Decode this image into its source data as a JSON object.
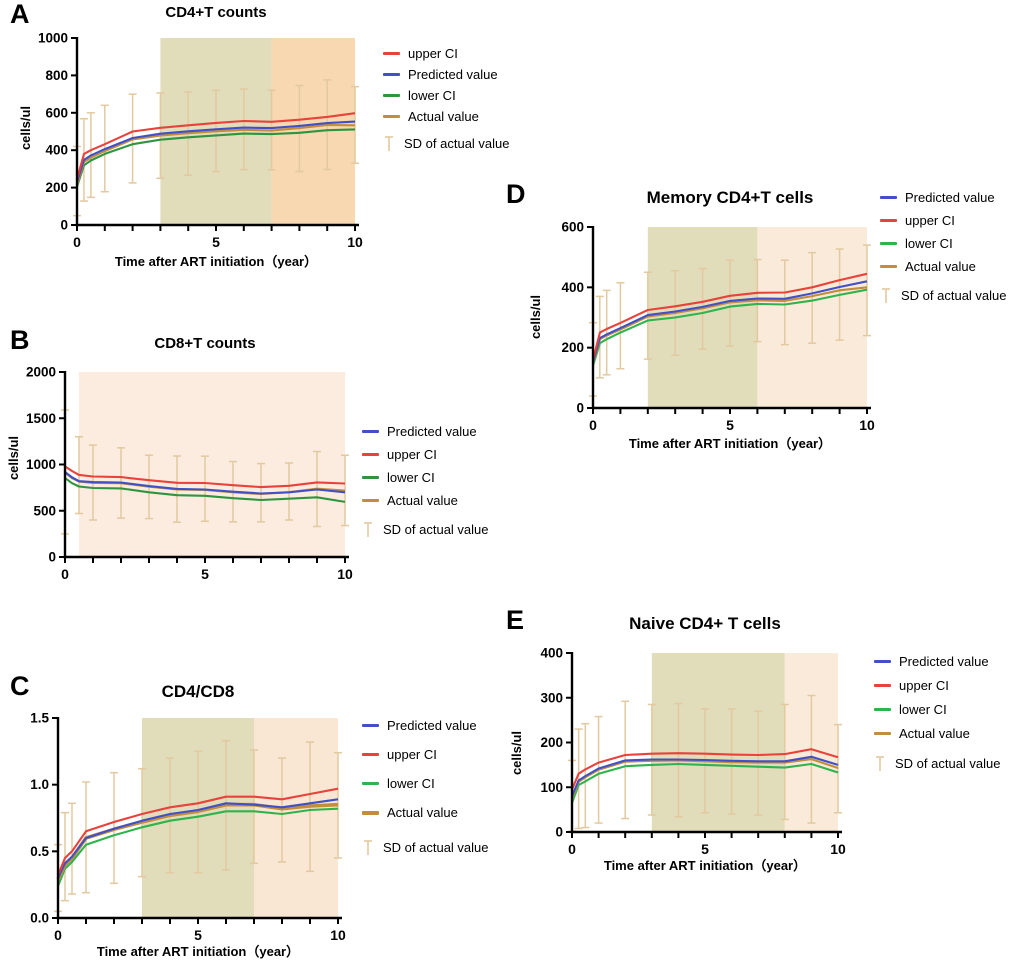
{
  "colors": {
    "red": "#e8423a",
    "blue": "#4150c8",
    "green_dark": "#2e9440",
    "green": "#2eb44c",
    "tan": "#c28e3e",
    "sd": "#e2c9a0",
    "olive": "#e1dcba",
    "peach_strong": "#f7d8b0",
    "peach_light": "#fcecdf",
    "peach": "#f9e6d3",
    "peach_soft": "#faead9"
  },
  "chart_data": [
    {
      "panel_label": "A",
      "type": "line",
      "title": "CD4+T counts",
      "xlabel": "Time after ART initiation（year）",
      "ylabel": "cells/ul",
      "xlim": [
        0,
        10
      ],
      "ylim": [
        0,
        1000
      ],
      "yticks": [
        0,
        200,
        400,
        600,
        800,
        1000
      ],
      "ytick_labels": [
        "0",
        "200",
        "400",
        "600",
        "800",
        "1000"
      ],
      "xticks_minor": [
        0,
        1,
        2,
        3,
        4,
        5,
        6,
        7,
        8,
        9,
        10
      ],
      "xticks_labeled": [
        0,
        5,
        10
      ],
      "regions": [
        {
          "from": 3,
          "to": 7,
          "color": "olive"
        },
        {
          "from": 7,
          "to": 10,
          "color": "peach_strong"
        }
      ],
      "x": [
        0,
        0.25,
        0.5,
        1,
        2,
        3,
        4,
        5,
        6,
        7,
        8,
        9,
        10
      ],
      "series": [
        {
          "name": "upper CI",
          "color": "red",
          "values": [
            245,
            380,
            400,
            432,
            500,
            520,
            533,
            546,
            556,
            552,
            563,
            578,
            598
          ]
        },
        {
          "name": "Predicted value",
          "color": "blue",
          "values": [
            230,
            348,
            372,
            406,
            465,
            488,
            501,
            512,
            521,
            518,
            530,
            545,
            553
          ]
        },
        {
          "name": "lower CI",
          "color": "green_dark",
          "values": [
            205,
            320,
            345,
            380,
            432,
            456,
            469,
            479,
            489,
            486,
            493,
            507,
            511
          ]
        },
        {
          "name": "Actual value",
          "color": "tan",
          "values": [
            215,
            338,
            360,
            395,
            458,
            478,
            491,
            501,
            509,
            505,
            518,
            535,
            533
          ]
        }
      ],
      "sd": {
        "label": "SD of  actual value",
        "x": [
          0,
          0.25,
          0.5,
          1,
          2,
          3,
          4,
          5,
          6,
          7,
          8,
          9,
          10
        ],
        "low": [
          50,
          128,
          148,
          178,
          225,
          250,
          266,
          286,
          296,
          295,
          286,
          297,
          330
        ],
        "high": [
          420,
          568,
          600,
          640,
          700,
          706,
          712,
          721,
          727,
          721,
          746,
          776,
          740
        ]
      }
    },
    {
      "panel_label": "B",
      "type": "line",
      "title": "CD8+T counts",
      "ylabel": "cells/ul",
      "xlim": [
        0,
        10
      ],
      "ylim": [
        0,
        2000
      ],
      "yticks": [
        0,
        500,
        1000,
        1500,
        2000
      ],
      "ytick_labels": [
        "0",
        "500",
        "1000",
        "1500",
        "2000"
      ],
      "xticks_minor": [
        0,
        1,
        2,
        3,
        4,
        5,
        6,
        7,
        8,
        9,
        10
      ],
      "xticks_labeled": [
        0,
        5,
        10
      ],
      "regions": [
        {
          "from": 0.5,
          "to": 10,
          "color": "peach_light"
        }
      ],
      "x": [
        0,
        0.25,
        0.5,
        1,
        2,
        3,
        4,
        5,
        6,
        7,
        8,
        9,
        10
      ],
      "series": [
        {
          "name": "Predicted value",
          "color": "blue",
          "values": [
            920,
            862,
            820,
            810,
            804,
            766,
            736,
            730,
            706,
            686,
            700,
            730,
            700
          ]
        },
        {
          "name": "upper CI",
          "color": "red",
          "values": [
            980,
            930,
            888,
            870,
            864,
            830,
            802,
            800,
            776,
            756,
            770,
            806,
            795
          ]
        },
        {
          "name": "lower CI",
          "color": "green_dark",
          "values": [
            855,
            798,
            762,
            746,
            742,
            700,
            668,
            662,
            636,
            616,
            630,
            645,
            596
          ]
        },
        {
          "name": "Actual value",
          "color": "tan",
          "values": [
            910,
            852,
            815,
            800,
            798,
            760,
            730,
            724,
            700,
            681,
            701,
            738,
            718
          ]
        }
      ],
      "sd": {
        "label": "SD of  actual value",
        "x": [
          0,
          0.5,
          1,
          2,
          3,
          4,
          5,
          6,
          7,
          8,
          9,
          10
        ],
        "low": [
          250,
          470,
          400,
          420,
          415,
          376,
          386,
          380,
          380,
          400,
          330,
          340
        ],
        "high": [
          1590,
          1300,
          1210,
          1180,
          1100,
          1092,
          1090,
          1032,
          1010,
          1016,
          1140,
          1100
        ]
      }
    },
    {
      "panel_label": "C",
      "type": "line",
      "title": "CD4/CD8",
      "xlabel": "Time after ART initiation（year）",
      "xlim": [
        0,
        10
      ],
      "ylim": [
        0,
        1.5
      ],
      "yticks": [
        0,
        0.5,
        1.0,
        1.5
      ],
      "ytick_labels": [
        "0.0",
        "0.5",
        "1.0",
        "1.5"
      ],
      "xticks_minor": [
        0,
        1,
        2,
        3,
        4,
        5,
        6,
        7,
        8,
        9,
        10
      ],
      "xticks_labeled": [
        0,
        5,
        10
      ],
      "regions": [
        {
          "from": 3,
          "to": 7,
          "color": "olive"
        },
        {
          "from": 7,
          "to": 10,
          "color": "peach"
        }
      ],
      "x": [
        0,
        0.25,
        0.5,
        1,
        2,
        3,
        4,
        5,
        6,
        7,
        8,
        9,
        10
      ],
      "series": [
        {
          "name": "Predicted value",
          "color": "blue",
          "values": [
            0.3,
            0.41,
            0.46,
            0.6,
            0.67,
            0.73,
            0.78,
            0.81,
            0.86,
            0.85,
            0.83,
            0.86,
            0.89
          ]
        },
        {
          "name": "upper CI",
          "color": "red",
          "values": [
            0.32,
            0.45,
            0.5,
            0.65,
            0.72,
            0.78,
            0.83,
            0.86,
            0.91,
            0.91,
            0.89,
            0.93,
            0.97
          ]
        },
        {
          "name": "lower CI",
          "color": "green",
          "values": [
            0.24,
            0.37,
            0.42,
            0.55,
            0.62,
            0.68,
            0.73,
            0.76,
            0.8,
            0.8,
            0.78,
            0.81,
            0.82
          ]
        },
        {
          "name": "Actual value",
          "color": "tan",
          "thick": true,
          "values": [
            0.29,
            0.4,
            0.45,
            0.6,
            0.665,
            0.72,
            0.77,
            0.8,
            0.85,
            0.85,
            0.82,
            0.84,
            0.85
          ]
        }
      ],
      "sd": {
        "label": "SD of  actual value",
        "x": [
          0,
          0.25,
          0.5,
          1,
          2,
          3,
          4,
          5,
          6,
          7,
          8,
          9,
          10
        ],
        "low": [
          0.05,
          0.13,
          0.18,
          0.19,
          0.26,
          0.31,
          0.34,
          0.34,
          0.36,
          0.41,
          0.42,
          0.35,
          0.45
        ],
        "high": [
          0.55,
          0.79,
          0.86,
          1.02,
          1.09,
          1.12,
          1.2,
          1.25,
          1.33,
          1.26,
          1.2,
          1.32,
          1.24
        ]
      }
    },
    {
      "panel_label": "D",
      "type": "line",
      "title": "Memory CD4+T cells",
      "xlabel": "Time after ART initiation（year）",
      "ylabel": "cells/ul",
      "xlim": [
        0,
        10
      ],
      "ylim": [
        0,
        600
      ],
      "yticks": [
        0,
        200,
        400,
        600
      ],
      "ytick_labels": [
        "0",
        "200",
        "400",
        "600"
      ],
      "xticks_minor": [
        0,
        1,
        2,
        3,
        4,
        5,
        6,
        7,
        8,
        9,
        10
      ],
      "xticks_labeled": [
        0,
        5,
        10
      ],
      "regions": [
        {
          "from": 2,
          "to": 6,
          "color": "olive"
        },
        {
          "from": 6,
          "to": 10,
          "color": "peach_soft"
        }
      ],
      "x": [
        0,
        0.25,
        0.5,
        1,
        2,
        3,
        4,
        5,
        6,
        7,
        8,
        9,
        10
      ],
      "series": [
        {
          "name": "Predicted value",
          "color": "blue",
          "values": [
            152,
            232,
            244,
            265,
            308,
            320,
            335,
            355,
            363,
            362,
            380,
            401,
            420
          ]
        },
        {
          "name": "upper CI",
          "color": "red",
          "values": [
            160,
            250,
            262,
            282,
            325,
            337,
            352,
            372,
            382,
            383,
            400,
            424,
            445
          ]
        },
        {
          "name": "lower CI",
          "color": "green",
          "values": [
            140,
            215,
            228,
            250,
            290,
            300,
            315,
            336,
            345,
            343,
            356,
            375,
            392
          ]
        },
        {
          "name": "Actual value",
          "color": "tan",
          "values": [
            148,
            228,
            240,
            260,
            303,
            315,
            330,
            350,
            357,
            355,
            371,
            390,
            400
          ]
        }
      ],
      "sd": {
        "label": "SD of  actual value",
        "x": [
          0,
          0.25,
          0.5,
          1,
          2,
          3,
          4,
          5,
          6,
          7,
          8,
          9,
          10
        ],
        "low": [
          40,
          100,
          110,
          130,
          162,
          175,
          195,
          205,
          220,
          210,
          215,
          225,
          240
        ],
        "high": [
          283,
          370,
          390,
          415,
          450,
          455,
          462,
          490,
          492,
          490,
          515,
          527,
          540
        ]
      }
    },
    {
      "panel_label": "E",
      "type": "line",
      "title": "Naive CD4+ T cells",
      "xlabel": "Time after ART initiation（year）",
      "ylabel": "cells/ul",
      "xlim": [
        0,
        10
      ],
      "ylim": [
        0,
        400
      ],
      "yticks": [
        0,
        100,
        200,
        300,
        400
      ],
      "ytick_labels": [
        "0",
        "100",
        "200",
        "300",
        "400"
      ],
      "xticks_minor": [
        0,
        1,
        2,
        3,
        4,
        5,
        6,
        7,
        8,
        9,
        10
      ],
      "xticks_labeled": [
        0,
        5,
        10
      ],
      "regions": [
        {
          "from": 3,
          "to": 8,
          "color": "olive"
        },
        {
          "from": 8,
          "to": 10,
          "color": "peach_soft"
        }
      ],
      "x": [
        0,
        0.25,
        0.5,
        1,
        2,
        3,
        4,
        5,
        6,
        7,
        8,
        9,
        10
      ],
      "series": [
        {
          "name": "Predicted value",
          "color": "blue",
          "values": [
            80,
            115,
            125,
            142,
            160,
            162,
            162,
            161,
            159,
            158,
            158,
            168,
            150
          ]
        },
        {
          "name": "upper CI",
          "color": "red",
          "values": [
            95,
            130,
            140,
            155,
            172,
            175,
            176,
            175,
            173,
            172,
            174,
            185,
            167
          ]
        },
        {
          "name": "lower CI",
          "color": "green",
          "values": [
            65,
            105,
            113,
            130,
            147,
            150,
            152,
            150,
            148,
            146,
            144,
            152,
            133
          ]
        },
        {
          "name": "Actual value",
          "color": "tan",
          "values": [
            75,
            112,
            122,
            139,
            157,
            159,
            160,
            158,
            156,
            155,
            155,
            163,
            143
          ]
        }
      ],
      "sd": {
        "label": "SD of  actual value",
        "x": [
          0,
          0.25,
          0.5,
          1,
          2,
          3,
          4,
          5,
          6,
          7,
          8,
          9,
          10
        ],
        "low": [
          2,
          8,
          10,
          20,
          30,
          38,
          34,
          43,
          40,
          38,
          28,
          20,
          43
        ],
        "high": [
          160,
          230,
          242,
          258,
          292,
          285,
          287,
          275,
          275,
          270,
          285,
          305,
          240
        ]
      }
    }
  ]
}
